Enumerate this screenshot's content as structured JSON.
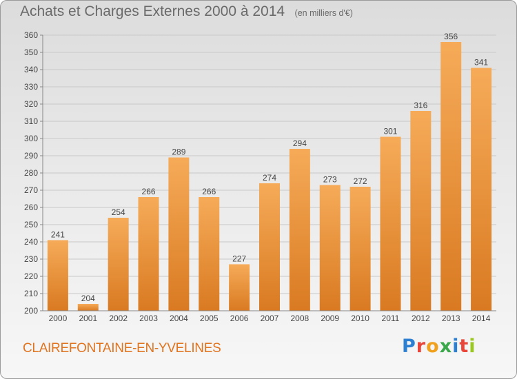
{
  "header": {
    "title": "Achats et Charges Externes 2000 à 2014",
    "unit": "(en milliers d'€)"
  },
  "footer": {
    "commune": "CLAIREFONTAINE-EN-YVELINES",
    "brand": "Proxiti",
    "brand_colors": [
      "#2c7fd1",
      "#e8463a",
      "#f0a21e",
      "#3aa84a",
      "#2c7fd1",
      "#e8463a",
      "#9ac81e"
    ]
  },
  "colors": {
    "bar_light": "#f6ab58",
    "bar_dark": "#d97a22",
    "grid": "#c8c8c8",
    "axis_text": "#444444"
  },
  "chart_data": {
    "type": "bar",
    "title": "Achats et Charges Externes 2000 à 2014",
    "subtitle": "(en milliers d'€)",
    "xlabel": "",
    "ylabel": "",
    "categories": [
      "2000",
      "2001",
      "2002",
      "2003",
      "2004",
      "2005",
      "2006",
      "2007",
      "2008",
      "2009",
      "2010",
      "2011",
      "2012",
      "2013",
      "2014"
    ],
    "values": [
      241,
      204,
      254,
      266,
      289,
      266,
      227,
      274,
      294,
      273,
      272,
      301,
      316,
      356,
      341
    ],
    "ylim": [
      200,
      360
    ],
    "yticks": [
      200,
      210,
      220,
      230,
      240,
      250,
      260,
      270,
      280,
      290,
      300,
      310,
      320,
      330,
      340,
      350,
      360
    ],
    "grid": true,
    "legend": "none"
  }
}
